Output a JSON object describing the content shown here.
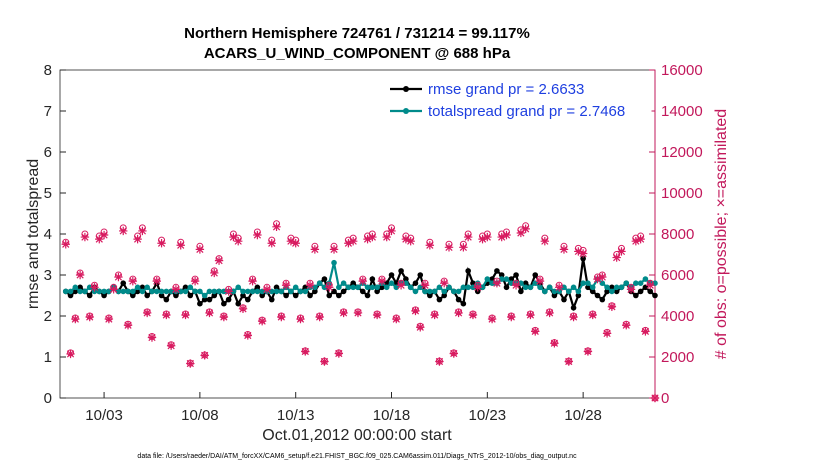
{
  "chart_data": {
    "type": "line",
    "title": "Northern Hemisphere 724761 / 731214 = 99.117%",
    "subtitle": "ACARS_U_WIND_COMPONENT @ 688 hPa",
    "xlabel": "Oct.01,2012 00:00:00 start",
    "ylabel": "rmse and totalspread",
    "y2label": "# of obs: o=possible; ×=assimilated",
    "footnote": "data file: /Users/raeder/DAI/ATM_forcXX/CAM6_setup/f.e21.FHIST_BGC.f09_025.CAM6assim.011/Diags_NTrS_2012-10/obs_diag_output.nc",
    "xlim": [
      -0.3,
      30.75
    ],
    "xticks": [
      {
        "value": 2,
        "label": "10/03"
      },
      {
        "value": 7,
        "label": "10/08"
      },
      {
        "value": 12,
        "label": "10/13"
      },
      {
        "value": 17,
        "label": "10/18"
      },
      {
        "value": 22,
        "label": "10/23"
      },
      {
        "value": 27,
        "label": "10/28"
      }
    ],
    "ylim": [
      0,
      8
    ],
    "yticks": [
      0,
      1,
      2,
      3,
      4,
      5,
      6,
      7,
      8
    ],
    "y2lim": [
      0,
      16000
    ],
    "y2ticks": [
      0,
      2000,
      4000,
      6000,
      8000,
      10000,
      12000,
      14000,
      16000
    ],
    "legend": "upper right",
    "x": [
      0,
      0.25,
      0.5,
      0.75,
      1,
      1.25,
      1.5,
      1.75,
      2,
      2.25,
      2.5,
      2.75,
      3,
      3.25,
      3.5,
      3.75,
      4,
      4.25,
      4.5,
      4.75,
      5,
      5.25,
      5.5,
      5.75,
      6,
      6.25,
      6.5,
      6.75,
      7,
      7.25,
      7.5,
      7.75,
      8,
      8.25,
      8.5,
      8.75,
      9,
      9.25,
      9.5,
      9.75,
      10,
      10.25,
      10.5,
      10.75,
      11,
      11.25,
      11.5,
      11.75,
      12,
      12.25,
      12.5,
      12.75,
      13,
      13.25,
      13.5,
      13.75,
      14,
      14.25,
      14.5,
      14.75,
      15,
      15.25,
      15.5,
      15.75,
      16,
      16.25,
      16.5,
      16.75,
      17,
      17.25,
      17.5,
      17.75,
      18,
      18.25,
      18.5,
      18.75,
      19,
      19.25,
      19.5,
      19.75,
      20,
      20.25,
      20.5,
      20.75,
      21,
      21.25,
      21.5,
      21.75,
      22,
      22.25,
      22.5,
      22.75,
      23,
      23.25,
      23.5,
      23.75,
      24,
      24.25,
      24.5,
      24.75,
      25,
      25.25,
      25.5,
      25.75,
      26,
      26.25,
      26.5,
      26.75,
      27,
      27.25,
      27.5,
      27.75,
      28,
      28.25,
      28.5,
      28.75,
      29,
      29.25,
      29.5,
      29.75,
      30,
      30.25,
      30.5,
      30.75
    ],
    "series": [
      {
        "name": "rmse grand pr = 2.6633",
        "color": "#000000",
        "marker": "dot",
        "line": true,
        "values": [
          2.6,
          2.5,
          2.6,
          2.7,
          2.6,
          2.5,
          2.7,
          2.6,
          2.5,
          2.6,
          2.7,
          2.6,
          2.8,
          2.6,
          2.5,
          2.6,
          2.7,
          2.5,
          2.6,
          2.8,
          2.5,
          2.4,
          2.6,
          2.5,
          2.6,
          2.7,
          2.5,
          2.6,
          2.3,
          2.4,
          2.4,
          2.5,
          2.6,
          2.3,
          2.4,
          2.6,
          2.3,
          2.5,
          2.4,
          2.6,
          2.7,
          2.5,
          2.6,
          2.4,
          2.7,
          2.6,
          2.5,
          2.6,
          2.5,
          2.6,
          2.7,
          2.5,
          2.6,
          2.8,
          2.9,
          2.5,
          2.6,
          2.5,
          2.6,
          2.7,
          2.8,
          2.7,
          2.6,
          2.5,
          2.9,
          2.6,
          2.7,
          2.8,
          3.0,
          2.8,
          3.1,
          2.9,
          2.7,
          2.8,
          3.0,
          2.6,
          2.5,
          2.6,
          2.4,
          2.5,
          2.7,
          2.6,
          2.4,
          2.3,
          3.1,
          2.8,
          2.6,
          2.7,
          2.8,
          2.9,
          3.1,
          3.0,
          2.7,
          2.9,
          3.0,
          2.6,
          2.8,
          2.7,
          3.0,
          2.8,
          2.6,
          2.7,
          2.5,
          2.6,
          2.4,
          2.6,
          2.2,
          2.5,
          3.4,
          2.7,
          2.6,
          2.5,
          2.4,
          2.6,
          2.7,
          2.6,
          2.7,
          2.8,
          2.6,
          2.5,
          2.6,
          2.7,
          2.6,
          2.5
        ]
      },
      {
        "name": "totalspread grand pr = 2.7468",
        "color": "#008b8b",
        "marker": "dot",
        "line": true,
        "values": [
          2.6,
          2.6,
          2.7,
          2.6,
          2.6,
          2.7,
          2.6,
          2.6,
          2.6,
          2.6,
          2.7,
          2.6,
          2.6,
          2.6,
          2.6,
          2.7,
          2.6,
          2.7,
          2.6,
          2.6,
          2.6,
          2.6,
          2.6,
          2.6,
          2.6,
          2.6,
          2.7,
          2.6,
          2.6,
          2.5,
          2.6,
          2.6,
          2.6,
          2.6,
          2.6,
          2.6,
          2.7,
          2.6,
          2.6,
          2.6,
          2.6,
          2.6,
          2.6,
          2.6,
          2.6,
          2.6,
          2.7,
          2.6,
          2.7,
          2.6,
          2.6,
          2.7,
          2.7,
          2.8,
          2.7,
          2.8,
          3.3,
          2.7,
          2.8,
          2.7,
          2.7,
          2.7,
          2.8,
          2.7,
          2.7,
          2.7,
          2.8,
          2.7,
          2.8,
          2.7,
          2.8,
          2.8,
          2.7,
          2.6,
          2.7,
          2.6,
          2.6,
          2.6,
          2.7,
          2.6,
          2.7,
          2.6,
          2.6,
          2.7,
          2.7,
          2.7,
          2.8,
          2.7,
          2.9,
          2.8,
          2.8,
          2.9,
          2.9,
          2.8,
          2.8,
          2.8,
          2.7,
          2.7,
          2.8,
          2.7,
          2.6,
          2.7,
          2.6,
          2.6,
          2.7,
          2.6,
          2.7,
          2.6,
          2.8,
          2.8,
          2.7,
          2.9,
          2.8,
          2.7,
          2.6,
          2.7,
          2.7,
          2.8,
          2.7,
          2.8,
          2.8,
          2.9,
          2.8,
          2.8
        ]
      },
      {
        "color": "#d81b60",
        "marker": "o",
        "axis": "y2",
        "values": [
          7600,
          2200,
          3900,
          6100,
          8000,
          4000,
          5500,
          7900,
          8100,
          3900,
          5400,
          6000,
          8300,
          3600,
          5800,
          7900,
          8300,
          4200,
          3000,
          5800,
          7700,
          4100,
          2600,
          5400,
          7600,
          4100,
          1700,
          5800,
          7400,
          2100,
          4200,
          6200,
          6800,
          4000,
          5300,
          8000,
          7800,
          4400,
          3100,
          5800,
          8100,
          3800,
          5400,
          7700,
          8500,
          4000,
          5600,
          7800,
          7700,
          3900,
          2300,
          5600,
          7400,
          4000,
          1800,
          5500,
          7400,
          2200,
          4200,
          7700,
          7800,
          4200,
          5800,
          7900,
          8000,
          4100,
          5800,
          8000,
          8300,
          3900,
          5600,
          7900,
          7800,
          4300,
          3500,
          5600,
          7600,
          4100,
          1800,
          5700,
          7500,
          2200,
          4200,
          7500,
          8000,
          4100,
          5500,
          7900,
          8000,
          3900,
          5700,
          8000,
          8100,
          4000,
          5600,
          8200,
          8400,
          4100,
          3300,
          5800,
          7800,
          4200,
          2700,
          5500,
          7400,
          1800,
          4000,
          7300,
          7200,
          2300,
          4100,
          5900,
          6000,
          3200,
          4500,
          7000,
          7300,
          3600,
          5400,
          7800,
          7900,
          3300,
          5600,
          0
        ]
      },
      {
        "color": "#d81b60",
        "marker": "x",
        "axis": "y2",
        "values": [
          7500,
          2150,
          3850,
          6000,
          7850,
          3950,
          5400,
          7750,
          7950,
          3850,
          5300,
          5900,
          8150,
          3550,
          5700,
          7750,
          8150,
          4150,
          2950,
          5700,
          7550,
          4050,
          2550,
          5300,
          7450,
          4050,
          1680,
          5700,
          7250,
          2080,
          4150,
          6100,
          6700,
          3950,
          5200,
          7850,
          7650,
          4350,
          3050,
          5700,
          7950,
          3750,
          5300,
          7550,
          8350,
          3950,
          5500,
          7650,
          7550,
          3850,
          2270,
          5500,
          7250,
          3950,
          1780,
          5400,
          7250,
          2170,
          4150,
          7550,
          7650,
          4150,
          5700,
          7750,
          7850,
          4050,
          5700,
          7850,
          8150,
          3850,
          5500,
          7750,
          7650,
          4250,
          3450,
          5500,
          7450,
          4050,
          1780,
          5600,
          7350,
          2170,
          4150,
          7350,
          7850,
          4050,
          5400,
          7750,
          7850,
          3850,
          5600,
          7850,
          7950,
          3950,
          5500,
          8050,
          8250,
          4050,
          3250,
          5700,
          7650,
          4150,
          2670,
          5400,
          7250,
          1780,
          3950,
          7150,
          7050,
          2270,
          4050,
          5800,
          5900,
          3150,
          4450,
          6850,
          7150,
          3550,
          5300,
          7650,
          7750,
          3250,
          5500,
          0
        ]
      }
    ]
  }
}
